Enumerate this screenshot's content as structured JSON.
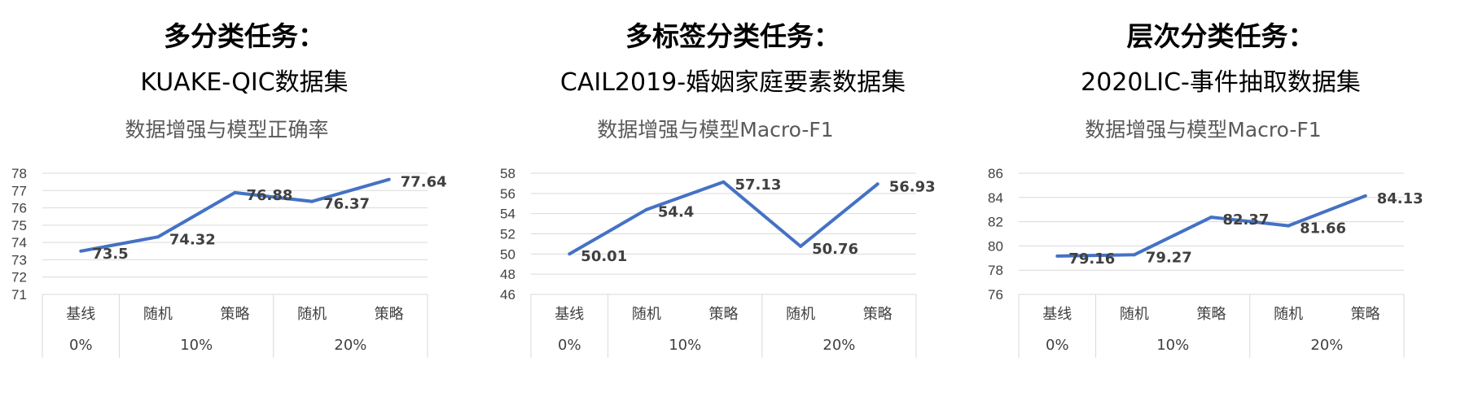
{
  "panels": [
    {
      "heading": "多分类任务：",
      "subheading": "KUAKE-QIC数据集",
      "chart_data": {
        "type": "line",
        "title": "数据增强与模型正确率",
        "categories": [
          "基线",
          "随机",
          "策略",
          "随机",
          "策略"
        ],
        "category_groups": [
          {
            "label": "0%",
            "span": 1
          },
          {
            "label": "10%",
            "span": 2
          },
          {
            "label": "20%",
            "span": 2
          }
        ],
        "values": [
          73.5,
          74.32,
          76.88,
          76.37,
          77.64
        ],
        "value_labels": [
          "73.5",
          "74.32",
          "76.88",
          "76.37",
          "77.64"
        ],
        "ylim": [
          71,
          78
        ],
        "yticks": [
          71,
          72,
          73,
          74,
          75,
          76,
          77,
          78
        ],
        "grid": true,
        "legend": "none",
        "color": "#4472c4"
      }
    },
    {
      "heading": "多标签分类任务：",
      "subheading": "CAIL2019-婚姻家庭要素数据集",
      "chart_data": {
        "type": "line",
        "title": "数据增强与模型Macro-F1",
        "categories": [
          "基线",
          "随机",
          "策略",
          "随机",
          "策略"
        ],
        "category_groups": [
          {
            "label": "0%",
            "span": 1
          },
          {
            "label": "10%",
            "span": 2
          },
          {
            "label": "20%",
            "span": 2
          }
        ],
        "values": [
          50.01,
          54.4,
          57.13,
          50.76,
          56.93
        ],
        "value_labels": [
          "50.01",
          "54.4",
          "57.13",
          "50.76",
          "56.93"
        ],
        "ylim": [
          46,
          58
        ],
        "yticks": [
          46,
          48,
          50,
          52,
          54,
          56,
          58
        ],
        "grid": true,
        "legend": "none",
        "color": "#4472c4"
      }
    },
    {
      "heading": "层次分类任务：",
      "subheading": "2020LIC-事件抽取数据集",
      "chart_data": {
        "type": "line",
        "title": "数据增强与模型Macro-F1",
        "categories": [
          "基线",
          "随机",
          "策略",
          "随机",
          "策略"
        ],
        "category_groups": [
          {
            "label": "0%",
            "span": 1
          },
          {
            "label": "10%",
            "span": 2
          },
          {
            "label": "20%",
            "span": 2
          }
        ],
        "values": [
          79.16,
          79.27,
          82.37,
          81.66,
          84.13
        ],
        "value_labels": [
          "79.16",
          "79.27",
          "82.37",
          "81.66",
          "84.13"
        ],
        "ylim": [
          76,
          86
        ],
        "yticks": [
          76,
          78,
          80,
          82,
          84,
          86
        ],
        "grid": true,
        "legend": "none",
        "color": "#4472c4"
      }
    }
  ]
}
